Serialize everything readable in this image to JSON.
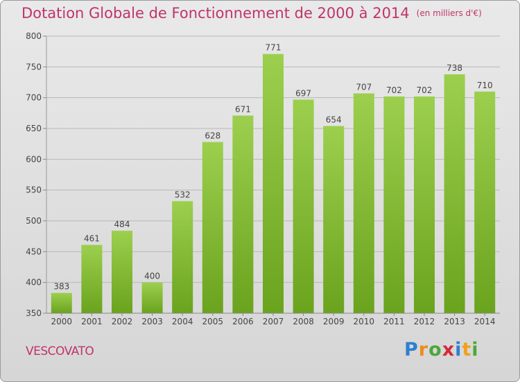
{
  "header": {
    "title": "Dotation Globale de Fonctionnement de 2000 à 2014",
    "unit": "(en milliers d'€)"
  },
  "commune": "VESCOVATO",
  "logo": {
    "text": "Proxiti",
    "letters": [
      {
        "ch": "P",
        "color": "#2e7fd0"
      },
      {
        "ch": "r",
        "color": "#f08a1c"
      },
      {
        "ch": "o",
        "color": "#4aa83c"
      },
      {
        "ch": "x",
        "color": "#d12b3a"
      },
      {
        "ch": "i",
        "color": "#2e7fd0"
      },
      {
        "ch": "t",
        "color": "#f0a01c"
      },
      {
        "ch": "i",
        "color": "#4aa83c"
      }
    ]
  },
  "colors": {
    "accent": "#c0336a",
    "bar_top": "#9ccf4e",
    "bar_bottom": "#6aa31d",
    "grid": "#b8b8b8"
  },
  "chart_data": {
    "type": "bar",
    "title": "Dotation Globale de Fonctionnement de 2000 à 2014",
    "subtitle": "(en milliers d'€)",
    "categories": [
      "2000",
      "2001",
      "2002",
      "2003",
      "2004",
      "2005",
      "2006",
      "2007",
      "2008",
      "2009",
      "2010",
      "2011",
      "2012",
      "2013",
      "2014"
    ],
    "values": [
      383,
      461,
      484,
      400,
      532,
      628,
      671,
      771,
      697,
      654,
      707,
      702,
      702,
      738,
      710
    ],
    "ylim": [
      350,
      800
    ],
    "yticks": [
      350,
      400,
      450,
      500,
      550,
      600,
      650,
      700,
      750,
      800
    ],
    "grid": true,
    "data_labels": true,
    "xlabel": "",
    "ylabel": ""
  }
}
